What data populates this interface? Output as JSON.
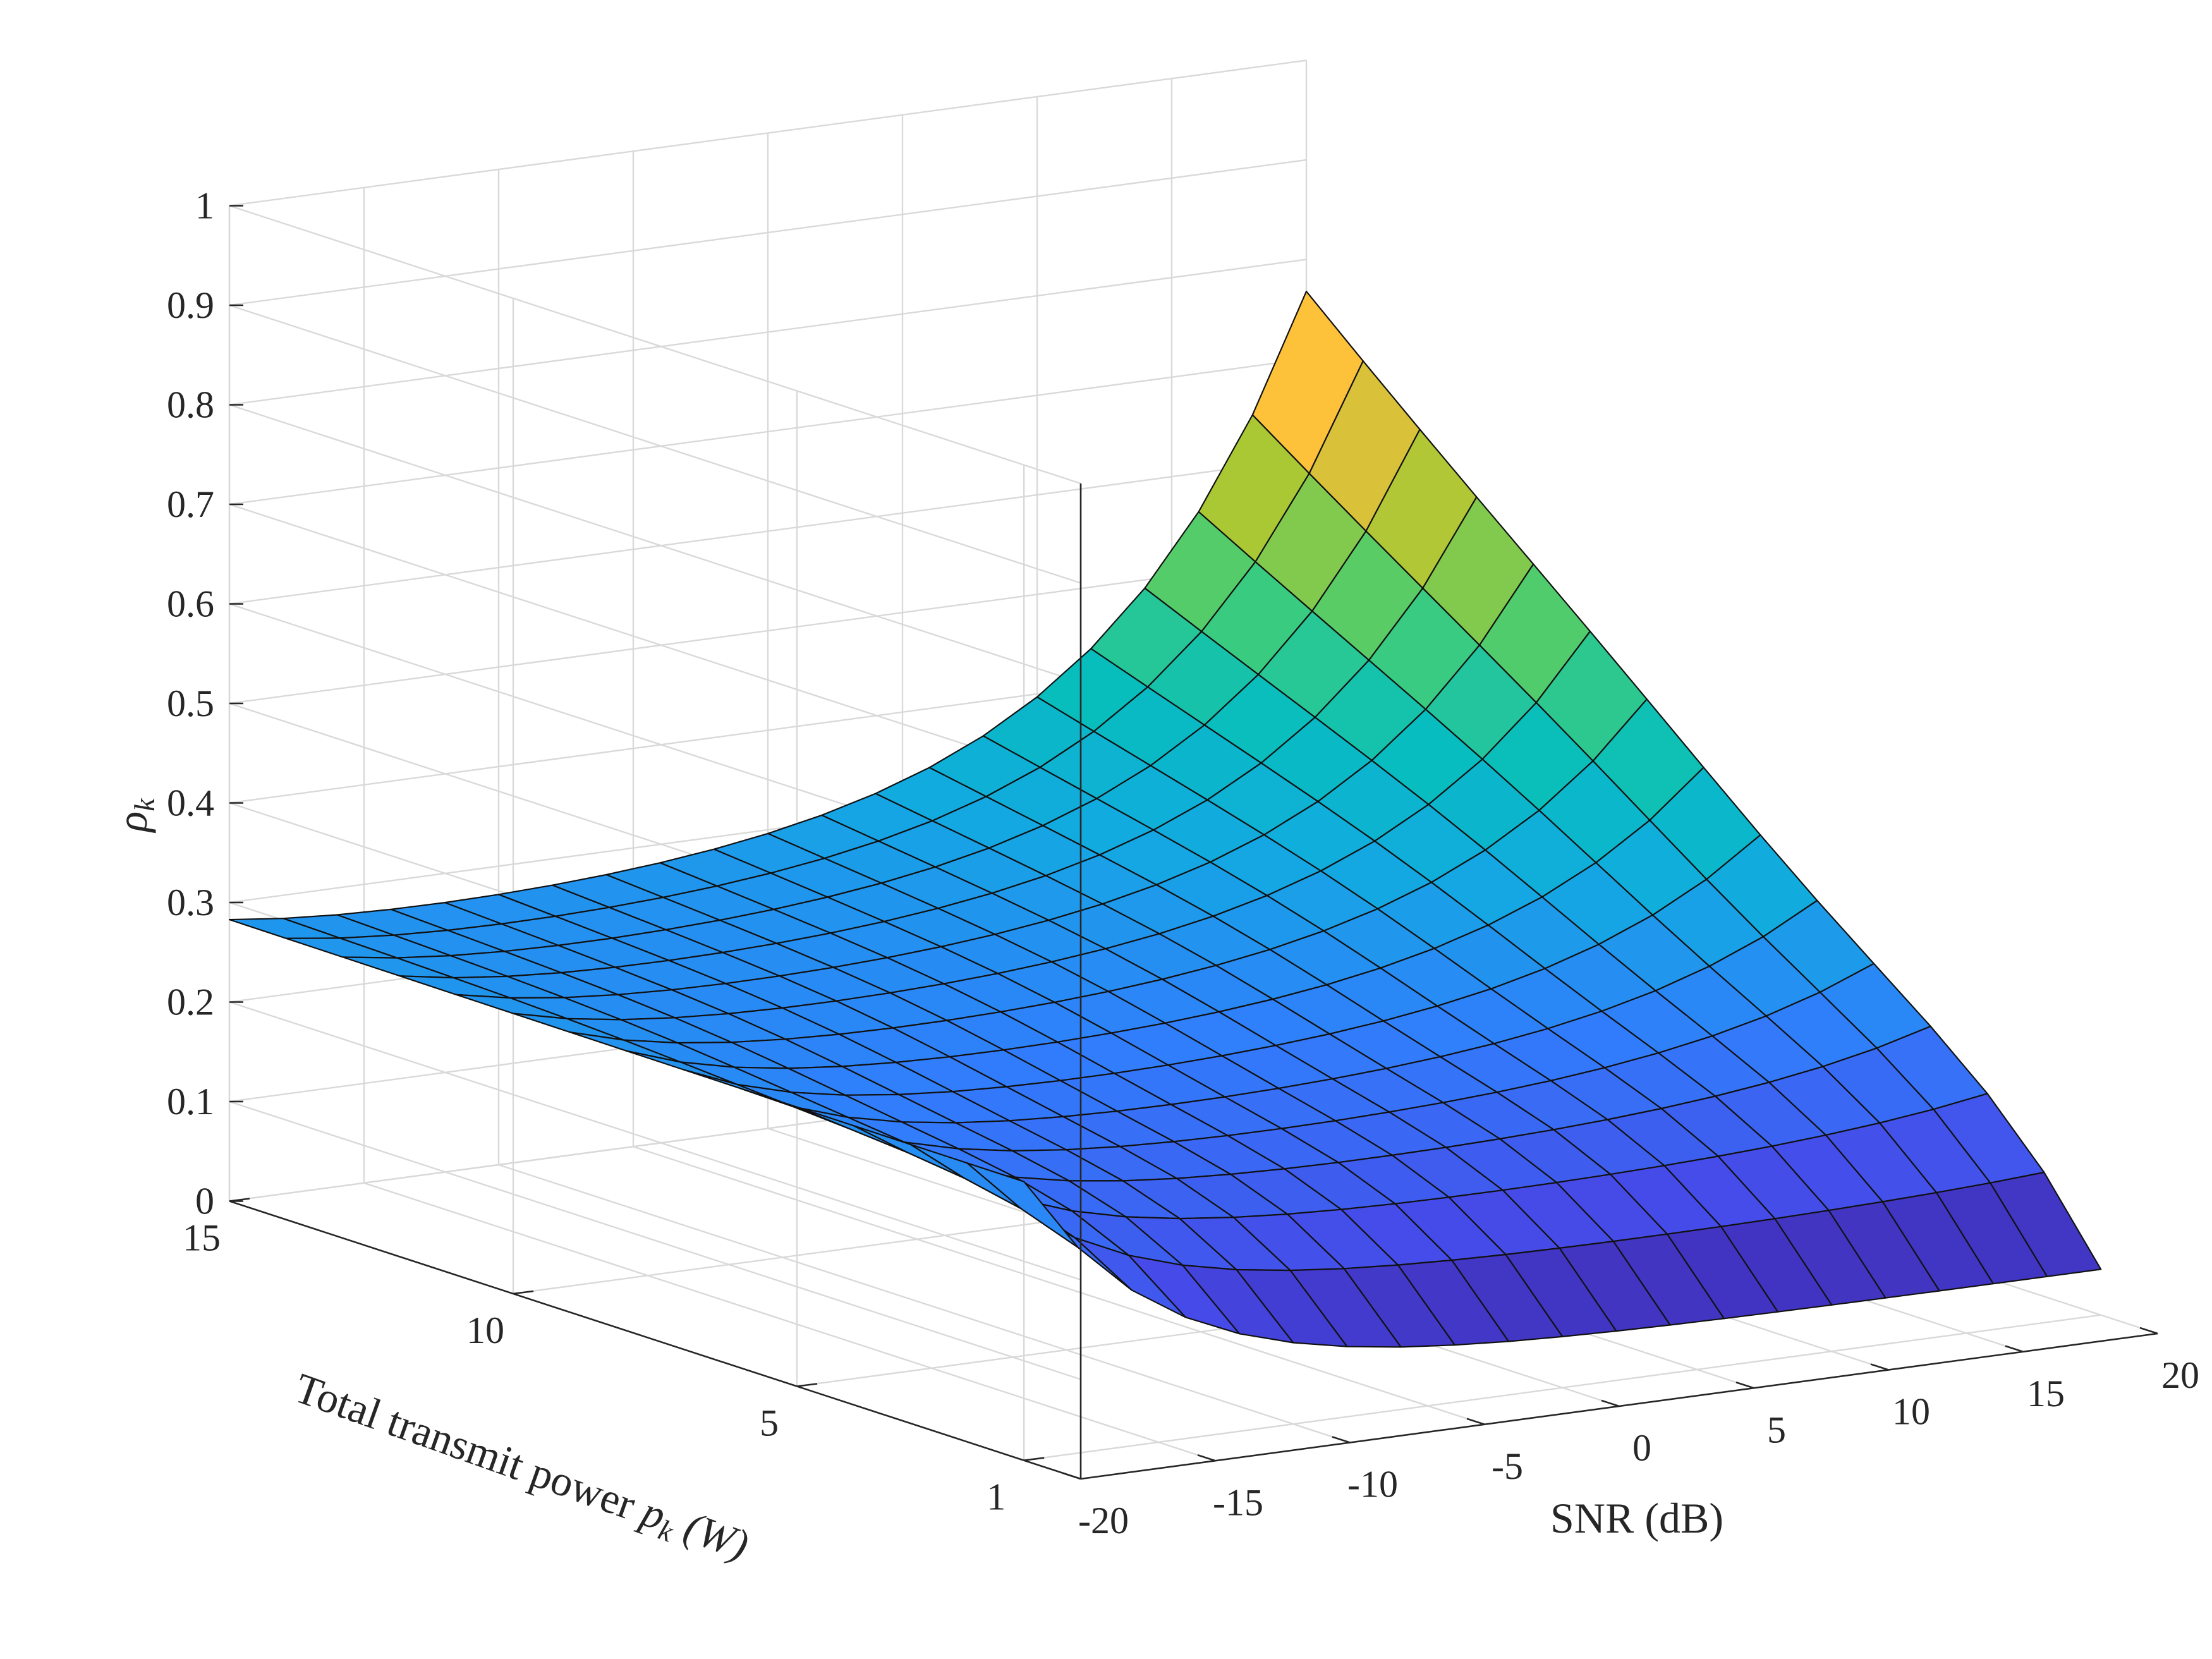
{
  "chart_data": {
    "type": "surface",
    "xlabel": "SNR (dB)",
    "ylabel_text": "Total transmit power ",
    "ylabel_var": "p",
    "ylabel_sub": "k",
    "ylabel_unit": " (W)",
    "zlabel_var": "ρ",
    "zlabel_sub": "k",
    "x_ticks": [
      "-20",
      "-15",
      "-10",
      "-5",
      "0",
      "5",
      "10",
      "15",
      "20"
    ],
    "y_ticks": [
      "1",
      "5",
      "10",
      "15"
    ],
    "z_ticks": [
      "0",
      "0.1",
      "0.2",
      "0.3",
      "0.4",
      "0.5",
      "0.6",
      "0.7",
      "0.8",
      "0.9",
      "1"
    ],
    "xlim": [
      -20,
      20
    ],
    "ylim": [
      0,
      15
    ],
    "zlim": [
      0,
      1
    ],
    "x_tick_values": [
      -20,
      -15,
      -10,
      -5,
      0,
      5,
      10,
      15,
      20
    ],
    "y_tick_values": [
      1,
      5,
      10,
      15
    ],
    "z_tick_values": [
      0,
      0.1,
      0.2,
      0.3,
      0.4,
      0.5,
      0.6,
      0.7,
      0.8,
      0.9,
      1
    ],
    "grid": true,
    "colormap": "parula",
    "surface": {
      "x_range": [
        -20,
        20
      ],
      "x_steps": 21,
      "y_range": [
        1,
        15
      ],
      "y_steps": 15,
      "peak_rho": 0.79,
      "peak_at": {
        "snr_db": 20,
        "power_w": 15
      },
      "rho_at_power_1w": 0.28,
      "rho_at_snr_minus20": 0.29,
      "rho_min": 0.02
    }
  }
}
